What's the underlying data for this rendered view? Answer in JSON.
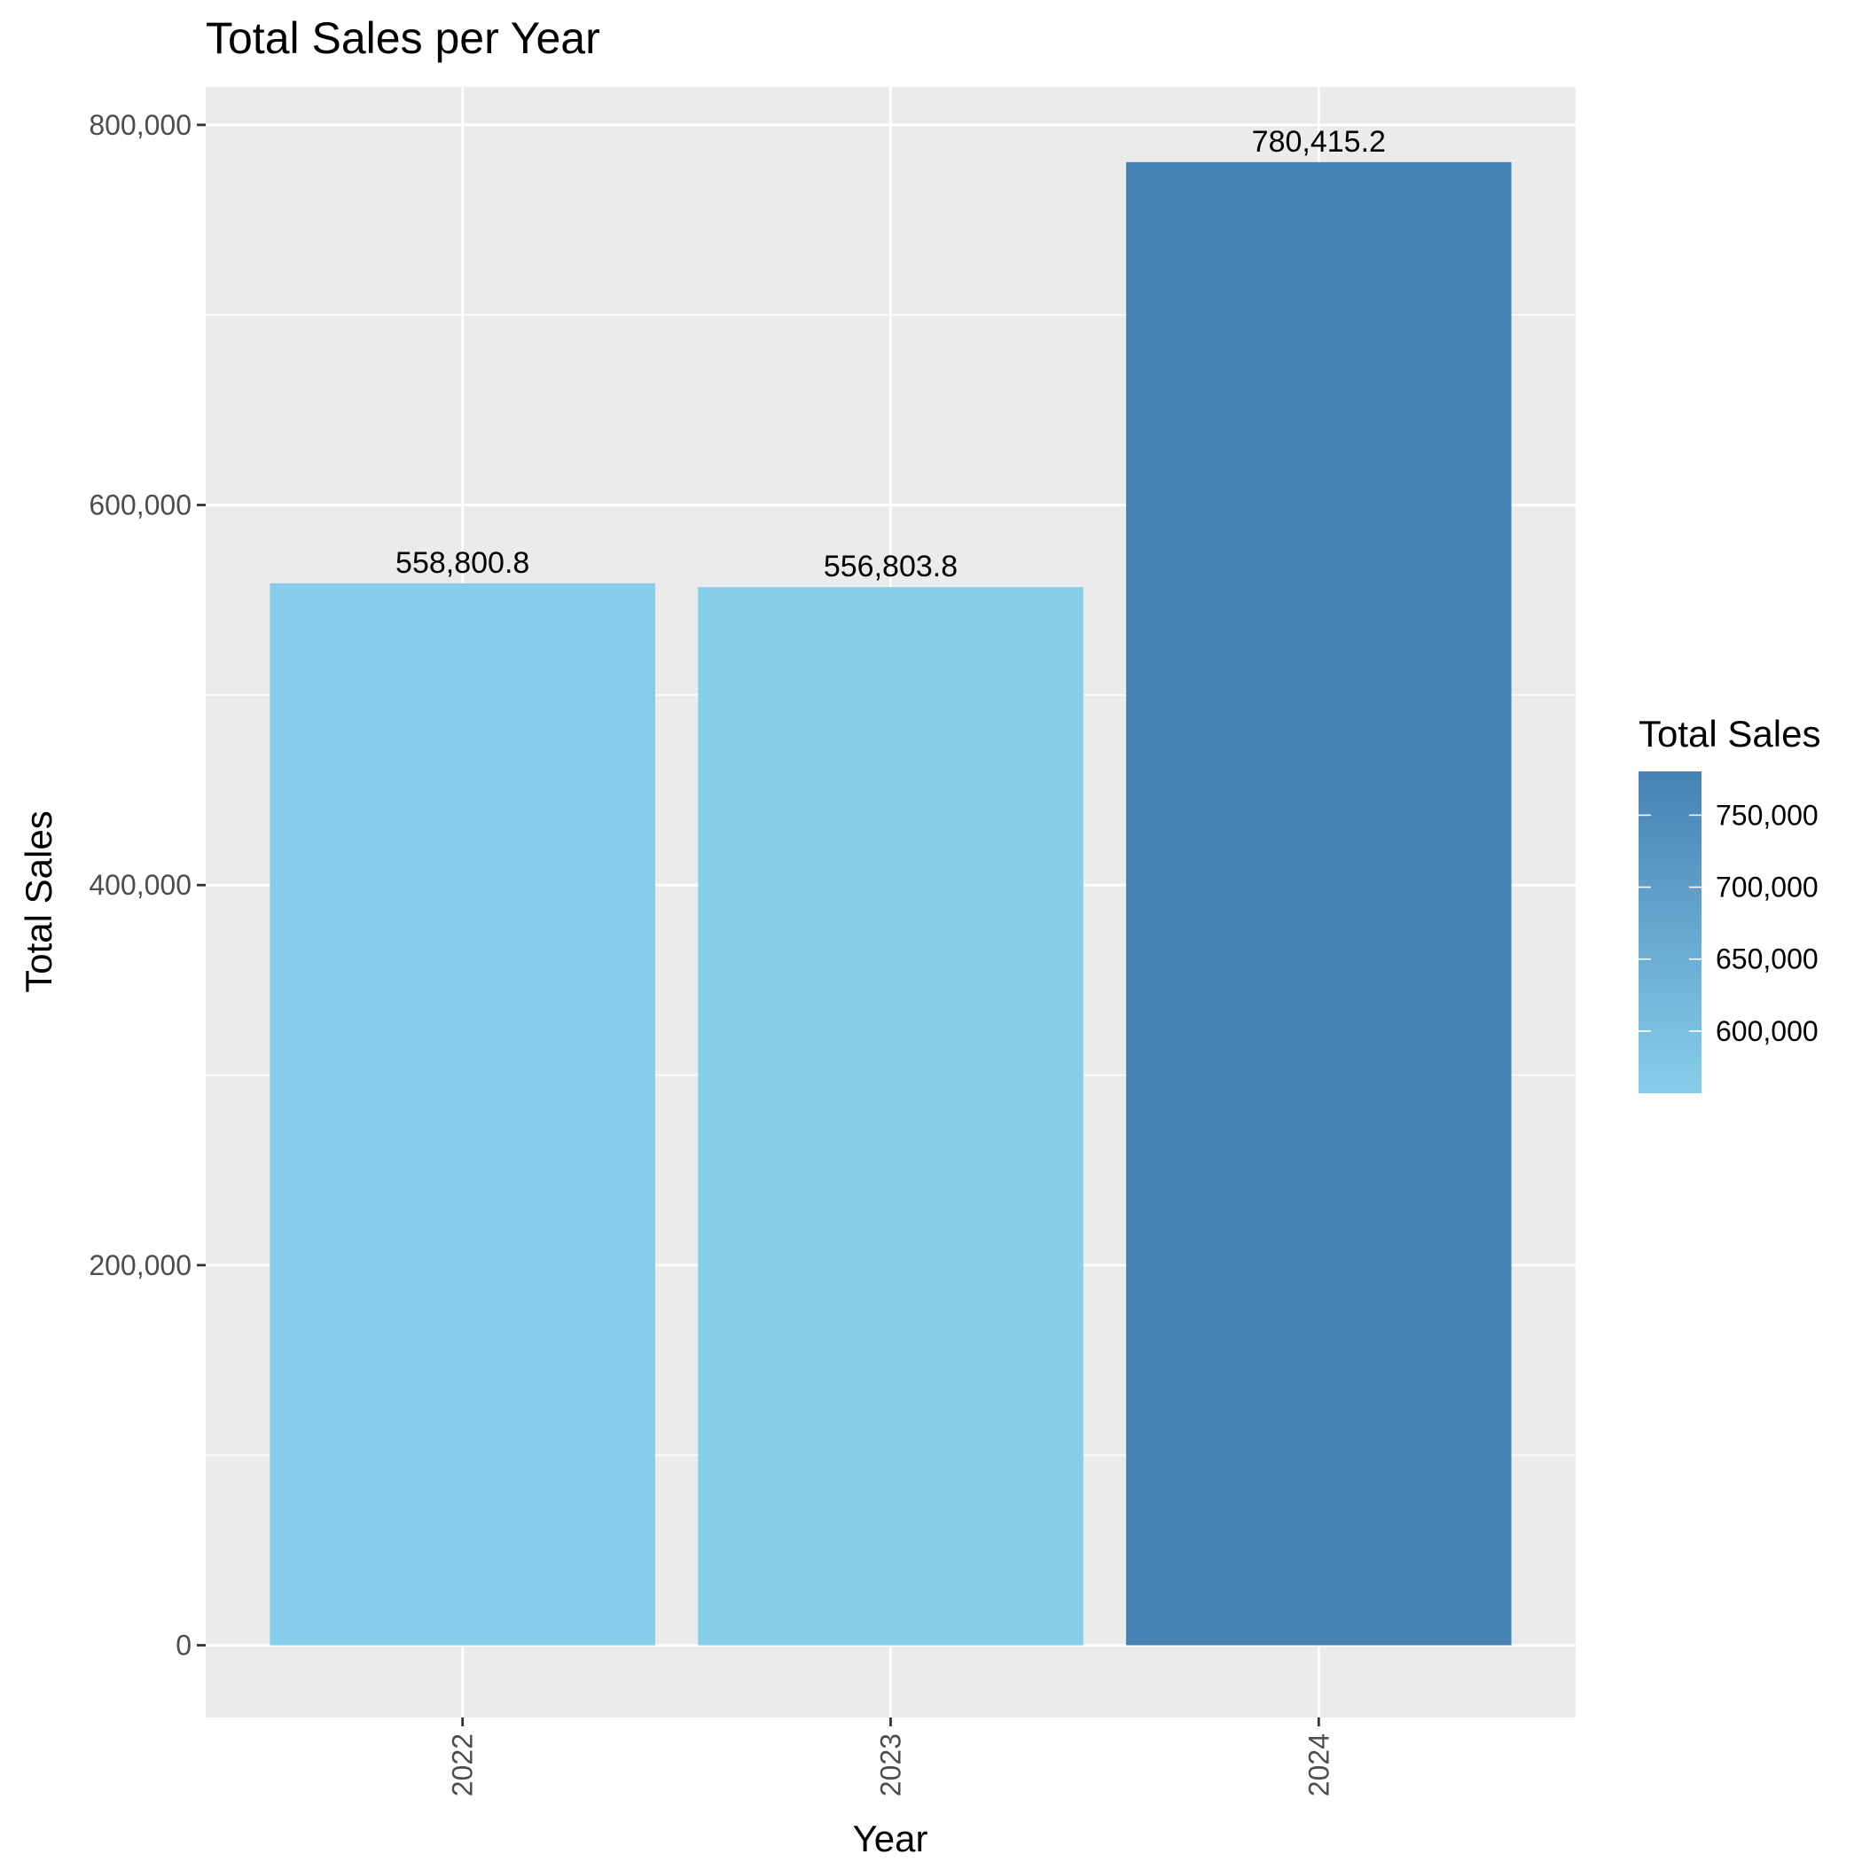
{
  "chart_data": {
    "type": "bar",
    "title": "Total Sales per Year",
    "xlabel": "Year",
    "ylabel": "Total Sales",
    "categories": [
      "2022",
      "2023",
      "2024"
    ],
    "values": [
      558800.8,
      556803.8,
      780415.2
    ],
    "value_labels": [
      "558,800.8",
      "556,803.8",
      "780,415.2"
    ],
    "ylim": [
      -38000,
      820000
    ],
    "y_ticks": [
      0,
      200000,
      400000,
      600000,
      800000
    ],
    "y_tick_labels": [
      "0",
      "200,000",
      "400,000",
      "600,000",
      "800,000"
    ],
    "y_minor_ticks": [
      100000,
      300000,
      500000,
      700000
    ],
    "x_tick_label_rotation": "vertical",
    "grid": true,
    "fill_scale": {
      "low_color": "#87CEEB",
      "high_color": "#4682B4",
      "range": [
        556803.8,
        780415.2
      ]
    },
    "legend": {
      "title": "Total Sales",
      "placement": "right",
      "breaks": [
        600000,
        650000,
        700000,
        750000
      ],
      "break_labels": [
        "600,000",
        "650,000",
        "700,000",
        "750,000"
      ]
    },
    "colors": {
      "panel_background": "#EBEBEB",
      "grid": "#FFFFFF"
    }
  }
}
